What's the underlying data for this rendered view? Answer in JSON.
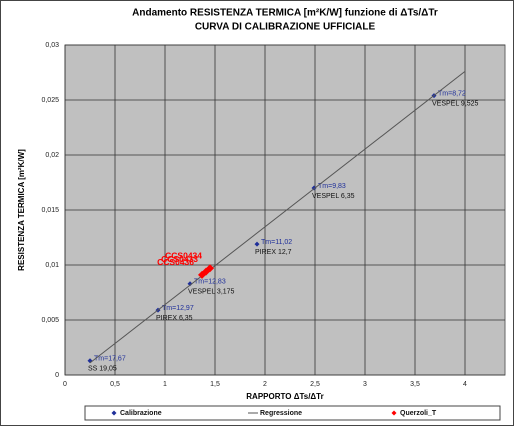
{
  "chart_data": {
    "type": "scatter",
    "title": "Andamento RESISTENZA TERMICA [m²K/W] funzione di ΔTs/ΔTr",
    "subtitle": "CURVA DI CALIBRAZIONE UFFICIALE",
    "x_label": "RAPPORTO ΔTs/ΔTr",
    "y_label": "RESISTENZA TERMICA [m²K/W]",
    "xlim": [
      0,
      4.4
    ],
    "ylim": [
      0,
      0.03
    ],
    "xticks": [
      0,
      {
        "value": 0.5,
        "label": "0,5"
      },
      1,
      {
        "value": 1.5,
        "label": "1,5"
      },
      2,
      {
        "value": 2.5,
        "label": "2,5"
      },
      3,
      {
        "value": 3.5,
        "label": "3,5"
      },
      4
    ],
    "yticks": [
      0,
      {
        "value": 0.005,
        "label": "0,005"
      },
      {
        "value": 0.01,
        "label": "0,01"
      },
      {
        "value": 0.015,
        "label": "0,015"
      },
      {
        "value": 0.02,
        "label": "0,02"
      },
      {
        "value": 0.025,
        "label": "0,025"
      },
      {
        "value": 0.03,
        "label": "0,03"
      }
    ],
    "grid": true,
    "legend": "bottom",
    "series": [
      {
        "name": "Calibrazione",
        "color": "#1f2f9a",
        "marker": "diamond",
        "x": [
          0.25,
          0.93,
          1.25,
          1.92,
          2.49,
          3.69
        ],
        "values": [
          0.0013,
          0.0059,
          0.0083,
          0.0119,
          0.017,
          0.0254
        ],
        "tm_labels": [
          "Tm=17,67",
          "Tm=12,97",
          "Tm=12,83",
          "Tm=11,02",
          "Tm=9,83",
          "Tm=8,72"
        ],
        "material_labels": [
          "SS 19,05",
          "PIREX 6,35",
          "VESPEL 3,175",
          "PIREX 12,7",
          "VESPEL 6,35",
          "VESPEL 9,525"
        ]
      },
      {
        "name": "Regressione",
        "color": "#555555",
        "marker": "line",
        "x": [
          0.25,
          4.0
        ],
        "values": [
          0.0011,
          0.0276
        ]
      },
      {
        "name": "Querzoli_T",
        "color": "#ff0000",
        "marker": "diamond",
        "x": [
          1.45,
          1.41,
          1.37
        ],
        "values": [
          0.0097,
          0.0094,
          0.0091
        ],
        "point_labels": [
          "CCS0434",
          "CCS0433",
          "CCS0436"
        ]
      }
    ]
  }
}
